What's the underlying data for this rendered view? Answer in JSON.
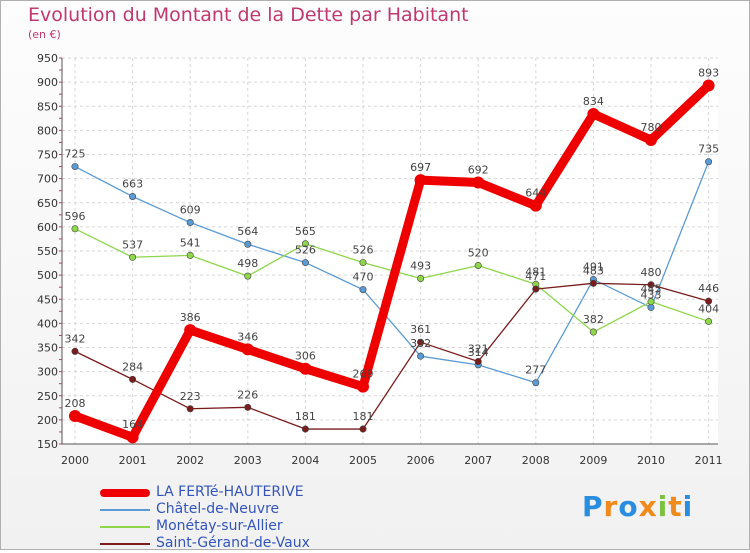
{
  "chart_data": {
    "type": "line",
    "title": "Evolution du Montant de la Dette par Habitant",
    "unit": "(en €)",
    "x": [
      "2000",
      "2001",
      "2002",
      "2003",
      "2004",
      "2005",
      "2006",
      "2007",
      "2008",
      "2009",
      "2010",
      "2011"
    ],
    "ylim": [
      150,
      950
    ],
    "yticks": [
      150,
      200,
      250,
      300,
      350,
      400,
      450,
      500,
      550,
      600,
      650,
      700,
      750,
      800,
      850,
      900,
      950
    ],
    "grid": true,
    "series": [
      {
        "name": "LA FERTé-HAUTERIVE",
        "color": "#ee0000",
        "width": "thick",
        "values": [
          208,
          164,
          386,
          346,
          306,
          269,
          697,
          692,
          644,
          834,
          780,
          893
        ]
      },
      {
        "name": "Châtel-de-Neuvre",
        "color": "#5b9bd5",
        "width": "thin",
        "values": [
          725,
          663,
          609,
          564,
          526,
          470,
          332,
          314,
          277,
          491,
          433,
          735
        ]
      },
      {
        "name": "Monétay-sur-Allier",
        "color": "#8ed64a",
        "width": "thin",
        "values": [
          596,
          537,
          541,
          498,
          565,
          526,
          493,
          520,
          481,
          382,
          445,
          404
        ]
      },
      {
        "name": "Saint-Gérand-de-Vaux",
        "color": "#7a1c1c",
        "width": "thin",
        "values": [
          342,
          284,
          223,
          226,
          181,
          181,
          361,
          321,
          471,
          483,
          480,
          446
        ]
      }
    ]
  },
  "brand": {
    "letters": [
      "P",
      "r",
      "o",
      "x",
      "i",
      "t",
      "i"
    ],
    "colors": [
      "#2a8ee0",
      "#f08a1c",
      "#2a8ee0",
      "#f08a1c",
      "#7cc242",
      "#f08a1c",
      "#2a8ee0"
    ]
  }
}
